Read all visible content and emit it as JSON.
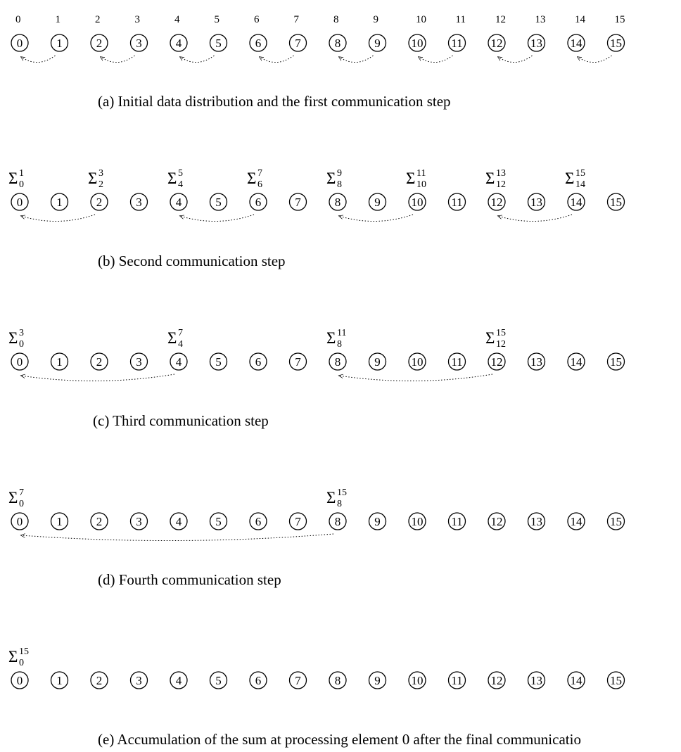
{
  "top_indices": [
    "0",
    "1",
    "2",
    "3",
    "4",
    "5",
    "6",
    "7",
    "8",
    "9",
    "10",
    "11",
    "12",
    "13",
    "14",
    "15"
  ],
  "panels": [
    {
      "caption": "(a)  Initial data distribution and the first communication step",
      "partial_sums": [],
      "transfers": [
        [
          1,
          0
        ],
        [
          3,
          2
        ],
        [
          5,
          4
        ],
        [
          7,
          6
        ],
        [
          9,
          8
        ],
        [
          11,
          10
        ],
        [
          13,
          12
        ],
        [
          15,
          14
        ]
      ]
    },
    {
      "caption": "(b)  Second communication step",
      "partial_sums": [
        {
          "at": 0,
          "sup": "1",
          "sub": "0"
        },
        {
          "at": 2,
          "sup": "3",
          "sub": "2"
        },
        {
          "at": 4,
          "sup": "5",
          "sub": "4"
        },
        {
          "at": 6,
          "sup": "7",
          "sub": "6"
        },
        {
          "at": 8,
          "sup": "9",
          "sub": "8"
        },
        {
          "at": 10,
          "sup": "11",
          "sub": "10"
        },
        {
          "at": 12,
          "sup": "13",
          "sub": "12"
        },
        {
          "at": 14,
          "sup": "15",
          "sub": "14"
        }
      ],
      "transfers": [
        [
          2,
          0
        ],
        [
          6,
          4
        ],
        [
          10,
          8
        ],
        [
          14,
          12
        ]
      ]
    },
    {
      "caption": "(c)  Third communication step",
      "partial_sums": [
        {
          "at": 0,
          "sup": "3",
          "sub": "0"
        },
        {
          "at": 4,
          "sup": "7",
          "sub": "4"
        },
        {
          "at": 8,
          "sup": "11",
          "sub": "8"
        },
        {
          "at": 12,
          "sup": "15",
          "sub": "12"
        }
      ],
      "transfers": [
        [
          4,
          0
        ],
        [
          12,
          8
        ]
      ]
    },
    {
      "caption": "(d)  Fourth communication step",
      "partial_sums": [
        {
          "at": 0,
          "sup": "7",
          "sub": "0"
        },
        {
          "at": 8,
          "sup": "15",
          "sub": "8"
        }
      ],
      "transfers": [
        [
          8,
          0
        ]
      ]
    },
    {
      "caption": "(e)  Accumulation of the sum at processing element 0  after the final communicatio",
      "partial_sums": [
        {
          "at": 0,
          "sup": "15",
          "sub": "0"
        }
      ],
      "transfers": []
    }
  ],
  "node_labels": [
    "0",
    "1",
    "2",
    "3",
    "4",
    "5",
    "6",
    "7",
    "8",
    "9",
    "10",
    "11",
    "12",
    "13",
    "14",
    "15"
  ],
  "sigma_symbol": "Σ"
}
